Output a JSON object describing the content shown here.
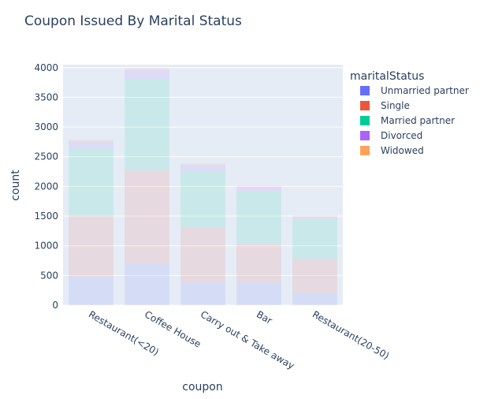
{
  "chart_data": {
    "type": "bar",
    "barmode": "stack",
    "title": "Coupon Issued By Marital Status",
    "xlabel": "coupon",
    "ylabel": "count",
    "categories": [
      "Restaurant(<20)",
      "Coffee House",
      "Carry out & Take away",
      "Bar",
      "Restaurant(20-50)"
    ],
    "ylim": [
      0,
      4050
    ],
    "yticks": [
      0,
      500,
      1000,
      1500,
      2000,
      2500,
      3000,
      3500,
      4000
    ],
    "grid": true,
    "legend_title": "maritalStatus",
    "legend_position": "right",
    "series": [
      {
        "name": "Unmarried partner",
        "color": "#636efa",
        "values": [
          480,
          700,
          380,
          380,
          210
        ]
      },
      {
        "name": "Single",
        "color": "#ef553b",
        "values": [
          1020,
          1570,
          930,
          650,
          570
        ]
      },
      {
        "name": "Married partner",
        "color": "#00cc96",
        "values": [
          1140,
          1540,
          950,
          880,
          660
        ]
      },
      {
        "name": "Divorced",
        "color": "#ab63fa",
        "values": [
          120,
          150,
          100,
          90,
          50
        ]
      },
      {
        "name": "Widowed",
        "color": "#ffa15a",
        "values": [
          30,
          36,
          30,
          17,
          20
        ]
      }
    ],
    "bar_opacity": 0.12
  }
}
